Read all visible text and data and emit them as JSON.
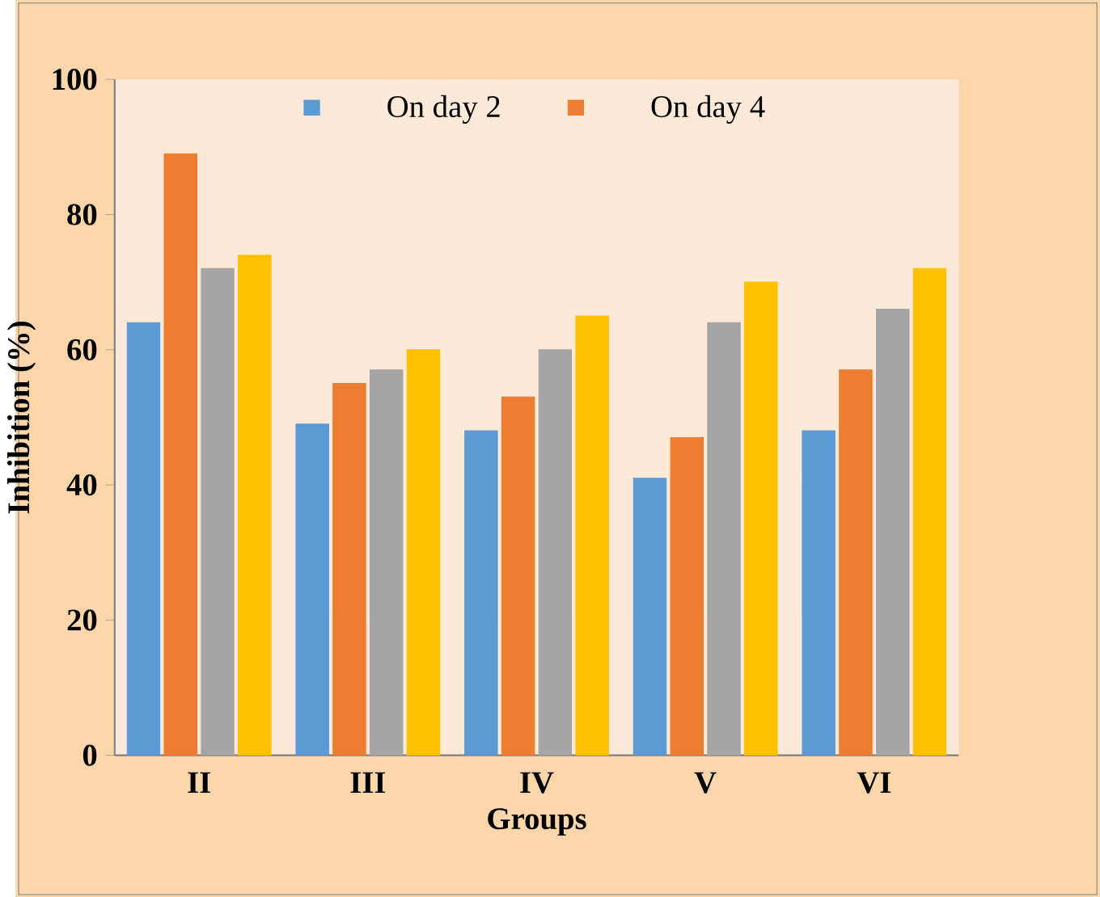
{
  "chart_data": {
    "type": "bar",
    "xlabel": "Groups",
    "ylabel": "Inhibition  (%)",
    "categories": [
      "II",
      "III",
      "IV",
      "V",
      "VI"
    ],
    "series": [
      {
        "name": "On day 2",
        "color": "#5b9bd5",
        "values": [
          64,
          49,
          48,
          41,
          48
        ]
      },
      {
        "name": "On day 4",
        "color": "#ed7d31",
        "values": [
          89,
          55,
          53,
          47,
          57
        ]
      },
      {
        "color": "#a5a5a5",
        "values": [
          72,
          57,
          60,
          64,
          66
        ]
      },
      {
        "color": "#ffc000",
        "values": [
          74,
          60,
          65,
          70,
          72
        ]
      }
    ],
    "ylim": [
      0,
      100
    ],
    "yticks": [
      0,
      20,
      40,
      60,
      80,
      100
    ],
    "grid": false,
    "legend": "top"
  }
}
